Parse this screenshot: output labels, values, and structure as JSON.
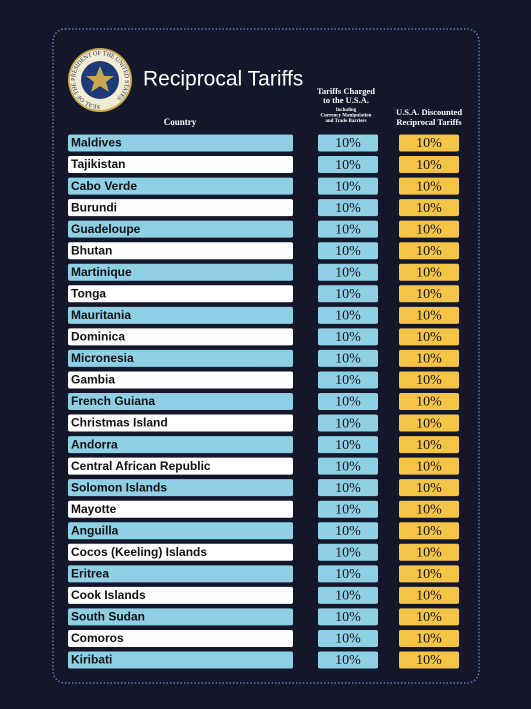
{
  "header": {
    "seal": "SEAL OF THE PRESIDENT OF THE UNITED STATES",
    "title": "Reciprocal Tariffs"
  },
  "columns": {
    "country": "Country",
    "charged": [
      "Tariffs Charged",
      "to the U.S.A."
    ],
    "charged_note": [
      "Including",
      "Currency Manipulation",
      "and Trade Barriers"
    ],
    "discounted": [
      "U.S.A. Discounted",
      "Reciprocal Tariffs"
    ]
  },
  "table": {
    "rows": [
      [
        "Maldives",
        "10%",
        "10%"
      ],
      [
        "Tajikistan",
        "10%",
        "10%"
      ],
      [
        "Cabo Verde",
        "10%",
        "10%"
      ],
      [
        "Burundi",
        "10%",
        "10%"
      ],
      [
        "Guadeloupe",
        "10%",
        "10%"
      ],
      [
        "Bhutan",
        "10%",
        "10%"
      ],
      [
        "Martinique",
        "10%",
        "10%"
      ],
      [
        "Tonga",
        "10%",
        "10%"
      ],
      [
        "Mauritania",
        "10%",
        "10%"
      ],
      [
        "Dominica",
        "10%",
        "10%"
      ],
      [
        "Micronesia",
        "10%",
        "10%"
      ],
      [
        "Gambia",
        "10%",
        "10%"
      ],
      [
        "French Guiana",
        "10%",
        "10%"
      ],
      [
        "Christmas Island",
        "10%",
        "10%"
      ],
      [
        "Andorra",
        "10%",
        "10%"
      ],
      [
        "Central African Republic",
        "10%",
        "10%"
      ],
      [
        "Solomon Islands",
        "10%",
        "10%"
      ],
      [
        "Mayotte",
        "10%",
        "10%"
      ],
      [
        "Anguilla",
        "10%",
        "10%"
      ],
      [
        "Cocos (Keeling) Islands",
        "10%",
        "10%"
      ],
      [
        "Eritrea",
        "10%",
        "10%"
      ],
      [
        "Cook Islands",
        "10%",
        "10%"
      ],
      [
        "South Sudan",
        "10%",
        "10%"
      ],
      [
        "Comoros",
        "10%",
        "10%"
      ],
      [
        "Kiribati",
        "10%",
        "10%"
      ]
    ]
  }
}
